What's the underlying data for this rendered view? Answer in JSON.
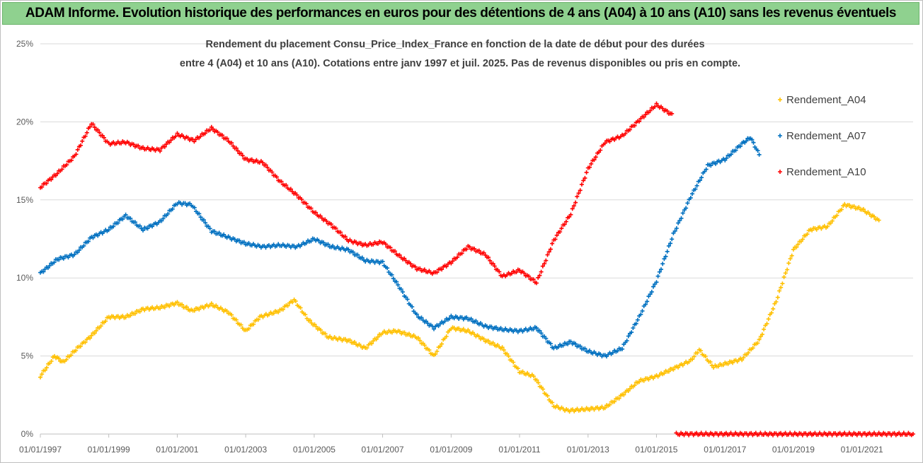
{
  "header": {
    "title": "ADAM Informe. Evolution historique des performances en euros pour des détentions de 4 ans (A04) à 10 ans (A10) sans les revenus éventuels"
  },
  "colors": {
    "banner_background": "#8fd18f",
    "gridline": "#d9d9d9",
    "axis_text": "#595959",
    "title_text": "#404040"
  },
  "chart_data": {
    "type": "scatter",
    "subtitle_lines": [
      "Rendement du placement Consu_Price_Index_France en fonction de la date de début pour des durées",
      "entre 4 (A04) et 10 ans (A10). Cotations entre janv 1997 et juil. 2025. Pas de revenus disponibles ou pris en compte."
    ],
    "x_axis": {
      "type": "date",
      "range": [
        "1997-01-01",
        "2022-07-01"
      ],
      "tick_labels": [
        "01/01/1997",
        "01/01/1999",
        "01/01/2001",
        "01/01/2003",
        "01/01/2005",
        "01/01/2007",
        "01/01/2009",
        "01/01/2011",
        "01/01/2013",
        "01/01/2015",
        "01/01/2017",
        "01/01/2019",
        "01/01/2021"
      ]
    },
    "y_axis": {
      "range": [
        0,
        0.25
      ],
      "tick_labels": [
        "0%",
        "5%",
        "10%",
        "15%",
        "20%",
        "25%"
      ]
    },
    "grid": "horizontal",
    "legend_position": "right",
    "marker": "+",
    "series": [
      {
        "name": "Rendement_A04",
        "color": "#ffc000",
        "points": [
          [
            "1997-01-01",
            0.037
          ],
          [
            "1997-06-01",
            0.05
          ],
          [
            "1997-09-01",
            0.046
          ],
          [
            "1998-02-01",
            0.055
          ],
          [
            "1998-07-01",
            0.063
          ],
          [
            "1999-01-01",
            0.075
          ],
          [
            "1999-07-01",
            0.075
          ],
          [
            "2000-01-01",
            0.08
          ],
          [
            "2000-07-01",
            0.081
          ],
          [
            "2001-01-01",
            0.084
          ],
          [
            "2001-06-01",
            0.079
          ],
          [
            "2002-01-01",
            0.083
          ],
          [
            "2002-07-01",
            0.078
          ],
          [
            "2003-01-01",
            0.066
          ],
          [
            "2003-06-01",
            0.075
          ],
          [
            "2004-01-01",
            0.079
          ],
          [
            "2004-06-01",
            0.086
          ],
          [
            "2004-11-01",
            0.073
          ],
          [
            "2005-06-01",
            0.062
          ],
          [
            "2006-01-01",
            0.06
          ],
          [
            "2006-07-01",
            0.055
          ],
          [
            "2007-01-01",
            0.065
          ],
          [
            "2007-06-01",
            0.066
          ],
          [
            "2008-01-01",
            0.062
          ],
          [
            "2008-07-01",
            0.05
          ],
          [
            "2009-01-01",
            0.068
          ],
          [
            "2009-07-01",
            0.066
          ],
          [
            "2010-01-01",
            0.06
          ],
          [
            "2010-07-01",
            0.055
          ],
          [
            "2011-01-01",
            0.04
          ],
          [
            "2011-06-01",
            0.037
          ],
          [
            "2012-01-01",
            0.018
          ],
          [
            "2012-06-01",
            0.015
          ],
          [
            "2013-01-01",
            0.016
          ],
          [
            "2013-07-01",
            0.017
          ],
          [
            "2014-01-01",
            0.025
          ],
          [
            "2014-07-01",
            0.034
          ],
          [
            "2015-01-01",
            0.037
          ],
          [
            "2015-07-01",
            0.042
          ],
          [
            "2016-01-01",
            0.047
          ],
          [
            "2016-04-01",
            0.054
          ],
          [
            "2016-09-01",
            0.043
          ],
          [
            "2017-01-01",
            0.045
          ],
          [
            "2017-07-01",
            0.048
          ],
          [
            "2018-01-01",
            0.06
          ],
          [
            "2018-07-01",
            0.085
          ],
          [
            "2019-01-01",
            0.118
          ],
          [
            "2019-07-01",
            0.131
          ],
          [
            "2020-01-01",
            0.133
          ],
          [
            "2020-07-01",
            0.147
          ],
          [
            "2021-01-01",
            0.144
          ],
          [
            "2021-07-01",
            0.137
          ]
        ]
      },
      {
        "name": "Rendement_A07",
        "color": "#0070c0",
        "points": [
          [
            "1997-01-01",
            0.103
          ],
          [
            "1997-07-01",
            0.112
          ],
          [
            "1998-01-01",
            0.115
          ],
          [
            "1998-07-01",
            0.126
          ],
          [
            "1999-01-01",
            0.131
          ],
          [
            "1999-07-01",
            0.14
          ],
          [
            "2000-01-01",
            0.131
          ],
          [
            "2000-07-01",
            0.136
          ],
          [
            "2001-01-01",
            0.148
          ],
          [
            "2001-06-01",
            0.147
          ],
          [
            "2002-01-01",
            0.13
          ],
          [
            "2002-07-01",
            0.126
          ],
          [
            "2003-01-01",
            0.122
          ],
          [
            "2003-07-01",
            0.12
          ],
          [
            "2004-01-01",
            0.121
          ],
          [
            "2004-07-01",
            0.12
          ],
          [
            "2005-01-01",
            0.125
          ],
          [
            "2005-07-01",
            0.12
          ],
          [
            "2006-01-01",
            0.118
          ],
          [
            "2006-07-01",
            0.111
          ],
          [
            "2007-01-01",
            0.11
          ],
          [
            "2007-07-01",
            0.094
          ],
          [
            "2008-01-01",
            0.076
          ],
          [
            "2008-07-01",
            0.068
          ],
          [
            "2009-01-01",
            0.075
          ],
          [
            "2009-07-01",
            0.074
          ],
          [
            "2010-01-01",
            0.069
          ],
          [
            "2010-07-01",
            0.067
          ],
          [
            "2011-01-01",
            0.066
          ],
          [
            "2011-07-01",
            0.068
          ],
          [
            "2012-01-01",
            0.055
          ],
          [
            "2012-07-01",
            0.059
          ],
          [
            "2013-01-01",
            0.053
          ],
          [
            "2013-07-01",
            0.05
          ],
          [
            "2014-01-01",
            0.055
          ],
          [
            "2014-07-01",
            0.075
          ],
          [
            "2015-01-01",
            0.098
          ],
          [
            "2015-07-01",
            0.128
          ],
          [
            "2016-01-01",
            0.152
          ],
          [
            "2016-07-01",
            0.172
          ],
          [
            "2017-01-01",
            0.176
          ],
          [
            "2017-07-01",
            0.186
          ],
          [
            "2017-10-01",
            0.19
          ],
          [
            "2018-01-01",
            0.179
          ]
        ]
      },
      {
        "name": "Rendement_A10",
        "color": "#ff0000",
        "points": [
          [
            "1997-01-01",
            0.158
          ],
          [
            "1997-07-01",
            0.167
          ],
          [
            "1998-01-01",
            0.178
          ],
          [
            "1998-07-01",
            0.199
          ],
          [
            "1999-01-01",
            0.186
          ],
          [
            "1999-07-01",
            0.187
          ],
          [
            "2000-01-01",
            0.183
          ],
          [
            "2000-07-01",
            0.182
          ],
          [
            "2001-01-01",
            0.192
          ],
          [
            "2001-07-01",
            0.188
          ],
          [
            "2002-01-01",
            0.196
          ],
          [
            "2002-07-01",
            0.188
          ],
          [
            "2003-01-01",
            0.176
          ],
          [
            "2003-07-01",
            0.174
          ],
          [
            "2004-01-01",
            0.162
          ],
          [
            "2004-07-01",
            0.153
          ],
          [
            "2005-01-01",
            0.142
          ],
          [
            "2005-07-01",
            0.134
          ],
          [
            "2006-01-01",
            0.124
          ],
          [
            "2006-07-01",
            0.121
          ],
          [
            "2007-01-01",
            0.123
          ],
          [
            "2007-07-01",
            0.114
          ],
          [
            "2008-01-01",
            0.106
          ],
          [
            "2008-07-01",
            0.103
          ],
          [
            "2009-01-01",
            0.11
          ],
          [
            "2009-07-01",
            0.12
          ],
          [
            "2010-01-01",
            0.115
          ],
          [
            "2010-07-01",
            0.101
          ],
          [
            "2011-01-01",
            0.105
          ],
          [
            "2011-07-01",
            0.097
          ],
          [
            "2012-01-01",
            0.124
          ],
          [
            "2012-07-01",
            0.141
          ],
          [
            "2013-01-01",
            0.17
          ],
          [
            "2013-07-01",
            0.187
          ],
          [
            "2014-01-01",
            0.191
          ],
          [
            "2014-07-01",
            0.201
          ],
          [
            "2015-01-01",
            0.211
          ],
          [
            "2015-07-01",
            0.204
          ],
          [
            "2015-08-01",
            0.0
          ],
          [
            "2022-07-01",
            0.0
          ]
        ]
      }
    ]
  }
}
